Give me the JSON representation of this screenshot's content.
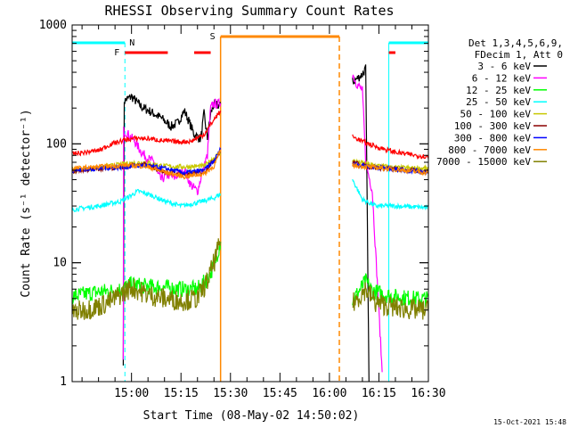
{
  "chart_data": {
    "type": "line",
    "title": "RHESSI Observing Summary Count Rates",
    "xlabel": "Start Time (08-May-02 14:50:02)",
    "ylabel": "Count Rate (s⁻¹ detector⁻¹)",
    "x_range_minutes": [
      -8,
      100
    ],
    "ylim": [
      1,
      1000
    ],
    "yscale": "log",
    "x_tick_labels": [
      "15:00",
      "15:15",
      "15:30",
      "15:45",
      "16:00",
      "16:15",
      "16:30"
    ],
    "y_tick_labels": [
      "1",
      "10",
      "100",
      "1000"
    ],
    "legend_header": [
      "Det 1,3,4,5,6,9,",
      "FDecim 1, Att 0"
    ],
    "timestamp": "15-Oct-2021 15:48",
    "flag_labels": {
      "night": "N",
      "saa": "S",
      "flare": "F"
    },
    "colors": {
      "night": "#00ffff",
      "saa": "#ff8800",
      "flare": "#ff0000"
    },
    "intervals": {
      "night": [
        [
          -8,
          8
        ],
        [
          88,
          104
        ]
      ],
      "saa": [
        [
          37,
          73
        ]
      ],
      "flare": [
        [
          8,
          21
        ],
        [
          29,
          34
        ],
        [
          88,
          90
        ]
      ]
    },
    "series": [
      {
        "name": "3 - 6 keV",
        "color": "#000000",
        "segments": [
          [
            [
              7.5,
              1.5
            ],
            [
              7.8,
              230
            ],
            [
              10,
              250
            ],
            [
              13,
              205
            ],
            [
              16,
              185
            ],
            [
              19,
              165
            ],
            [
              22,
              140
            ],
            [
              24,
              150
            ],
            [
              26,
              190
            ],
            [
              27,
              165
            ],
            [
              29,
              120
            ],
            [
              31,
              110
            ],
            [
              32,
              180
            ],
            [
              33,
              110
            ],
            [
              34,
              180
            ],
            [
              35,
              215
            ],
            [
              36,
              210
            ],
            [
              37,
              215
            ]
          ],
          [
            [
              77,
              330
            ],
            [
              80,
              385
            ],
            [
              81,
              430
            ],
            [
              82,
              1
            ]
          ]
        ],
        "noise": 0.04
      },
      {
        "name": "6 - 12 keV",
        "color": "#ff00ff",
        "segments": [
          [
            [
              7.5,
              1.5
            ],
            [
              7.6,
              130
            ],
            [
              9,
              120
            ],
            [
              11,
              105
            ],
            [
              13,
              85
            ],
            [
              15,
              75
            ],
            [
              17,
              70
            ],
            [
              18,
              55
            ],
            [
              19,
              50
            ],
            [
              21,
              55
            ],
            [
              23,
              52
            ],
            [
              26,
              60
            ],
            [
              28,
              45
            ],
            [
              30,
              40
            ],
            [
              32,
              65
            ],
            [
              33,
              80
            ],
            [
              34,
              200
            ],
            [
              35,
              220
            ],
            [
              36,
              215
            ],
            [
              37,
              220
            ]
          ],
          [
            [
              77,
              390
            ],
            [
              78,
              330
            ],
            [
              80,
              280
            ],
            [
              81,
              70
            ],
            [
              83,
              40
            ],
            [
              86,
              1.2
            ]
          ]
        ],
        "noise": 0.04
      },
      {
        "name": "12 - 25 keV",
        "color": "#00ff00",
        "segments": [
          [
            [
              -8,
              5.2
            ],
            [
              0,
              5.7
            ],
            [
              4,
              5.8
            ],
            [
              7,
              6.0
            ],
            [
              10,
              6.6
            ],
            [
              15,
              6.3
            ],
            [
              20,
              6.2
            ],
            [
              25,
              6.0
            ],
            [
              30,
              6.0
            ],
            [
              33,
              7.3
            ],
            [
              35,
              9.5
            ],
            [
              37,
              15
            ]
          ],
          [
            [
              77,
              4.8
            ],
            [
              81,
              7
            ],
            [
              83,
              5.8
            ],
            [
              89,
              5.2
            ],
            [
              96,
              5.0
            ],
            [
              104,
              4.9
            ]
          ]
        ],
        "noise": 0.07
      },
      {
        "name": "25 - 50 keV",
        "color": "#00ffff",
        "segments": [
          [
            [
              -8,
              28
            ],
            [
              0,
              30
            ],
            [
              7,
              33
            ],
            [
              12,
              40
            ],
            [
              16,
              37
            ],
            [
              20,
              33
            ],
            [
              25,
              30
            ],
            [
              30,
              32
            ],
            [
              35,
              35
            ],
            [
              37,
              38
            ]
          ],
          [
            [
              77,
              50
            ],
            [
              80,
              34
            ],
            [
              84,
              30
            ],
            [
              90,
              30
            ],
            [
              100,
              29
            ],
            [
              104,
              29
            ]
          ]
        ],
        "noise": 0.02
      },
      {
        "name": "50 - 100 keV",
        "color": "#c8c800",
        "segments": [
          [
            [
              -8,
              60
            ],
            [
              0,
              63
            ],
            [
              8,
              68
            ],
            [
              14,
              70
            ],
            [
              20,
              65
            ],
            [
              26,
              64
            ],
            [
              32,
              65
            ],
            [
              37,
              85
            ]
          ],
          [
            [
              77,
              72
            ],
            [
              82,
              67
            ],
            [
              90,
              63
            ],
            [
              100,
              62
            ],
            [
              104,
              60
            ]
          ]
        ],
        "noise": 0.02
      },
      {
        "name": "100 - 300 keV",
        "color": "#8b0000",
        "segments": [
          [
            [
              -8,
              59
            ],
            [
              0,
              62
            ],
            [
              8,
              64
            ],
            [
              14,
              67
            ],
            [
              20,
              58
            ],
            [
              26,
              55
            ],
            [
              32,
              58
            ],
            [
              37,
              85
            ]
          ],
          [
            [
              77,
              70
            ],
            [
              82,
              64
            ],
            [
              90,
              61
            ],
            [
              100,
              58
            ],
            [
              104,
              57
            ]
          ]
        ],
        "noise": 0.02
      },
      {
        "name": "300 - 800 keV",
        "color": "#0000ff",
        "segments": [
          [
            [
              -8,
              60
            ],
            [
              0,
              62
            ],
            [
              8,
              64
            ],
            [
              14,
              66
            ],
            [
              20,
              62
            ],
            [
              26,
              57
            ],
            [
              32,
              60
            ],
            [
              35,
              72
            ],
            [
              37,
              90
            ]
          ],
          [
            [
              77,
              68
            ],
            [
              82,
              65
            ],
            [
              90,
              61
            ],
            [
              100,
              58
            ],
            [
              104,
              57
            ]
          ]
        ],
        "noise": 0.02
      },
      {
        "name": "800 - 7000 keV",
        "color": "#ff8800",
        "segments": [
          [
            [
              -8,
              62
            ],
            [
              0,
              64
            ],
            [
              8,
              66
            ],
            [
              14,
              65
            ],
            [
              20,
              58
            ],
            [
              26,
              53
            ],
            [
              32,
              56
            ],
            [
              35,
              65
            ],
            [
              37,
              88
            ]
          ],
          [
            [
              77,
              66
            ],
            [
              82,
              64
            ],
            [
              90,
              61
            ],
            [
              100,
              57
            ],
            [
              104,
              56
            ]
          ]
        ],
        "noise": 0.02
      },
      {
        "name": "7000 - 15000 keV",
        "color": "#808000",
        "segments": [
          [
            [
              -8,
              3.8
            ],
            [
              0,
              4.3
            ],
            [
              4,
              4.8
            ],
            [
              7,
              5.5
            ],
            [
              10,
              6.2
            ],
            [
              15,
              5.4
            ],
            [
              20,
              5.0
            ],
            [
              25,
              4.8
            ],
            [
              30,
              5.0
            ],
            [
              33,
              7
            ],
            [
              35,
              10
            ],
            [
              37,
              15
            ]
          ],
          [
            [
              77,
              4.5
            ],
            [
              81,
              6
            ],
            [
              84,
              4.6
            ],
            [
              90,
              4.2
            ],
            [
              96,
              4.0
            ],
            [
              104,
              4.0
            ]
          ]
        ],
        "noise": 0.09
      },
      {
        "name": "",
        "color": "#ff0000",
        "segments": [
          [
            [
              -8,
              82
            ],
            [
              0,
              88
            ],
            [
              4,
              100
            ],
            [
              8,
              108
            ],
            [
              12,
              112
            ],
            [
              16,
              110
            ],
            [
              20,
              106
            ],
            [
              24,
              104
            ],
            [
              28,
              105
            ],
            [
              32,
              120
            ],
            [
              35,
              160
            ],
            [
              37,
              190
            ]
          ],
          [
            [
              77,
              115
            ],
            [
              80,
              105
            ],
            [
              84,
              95
            ],
            [
              90,
              85
            ],
            [
              96,
              80
            ],
            [
              104,
              76
            ]
          ]
        ],
        "noise": 0.02
      }
    ]
  }
}
